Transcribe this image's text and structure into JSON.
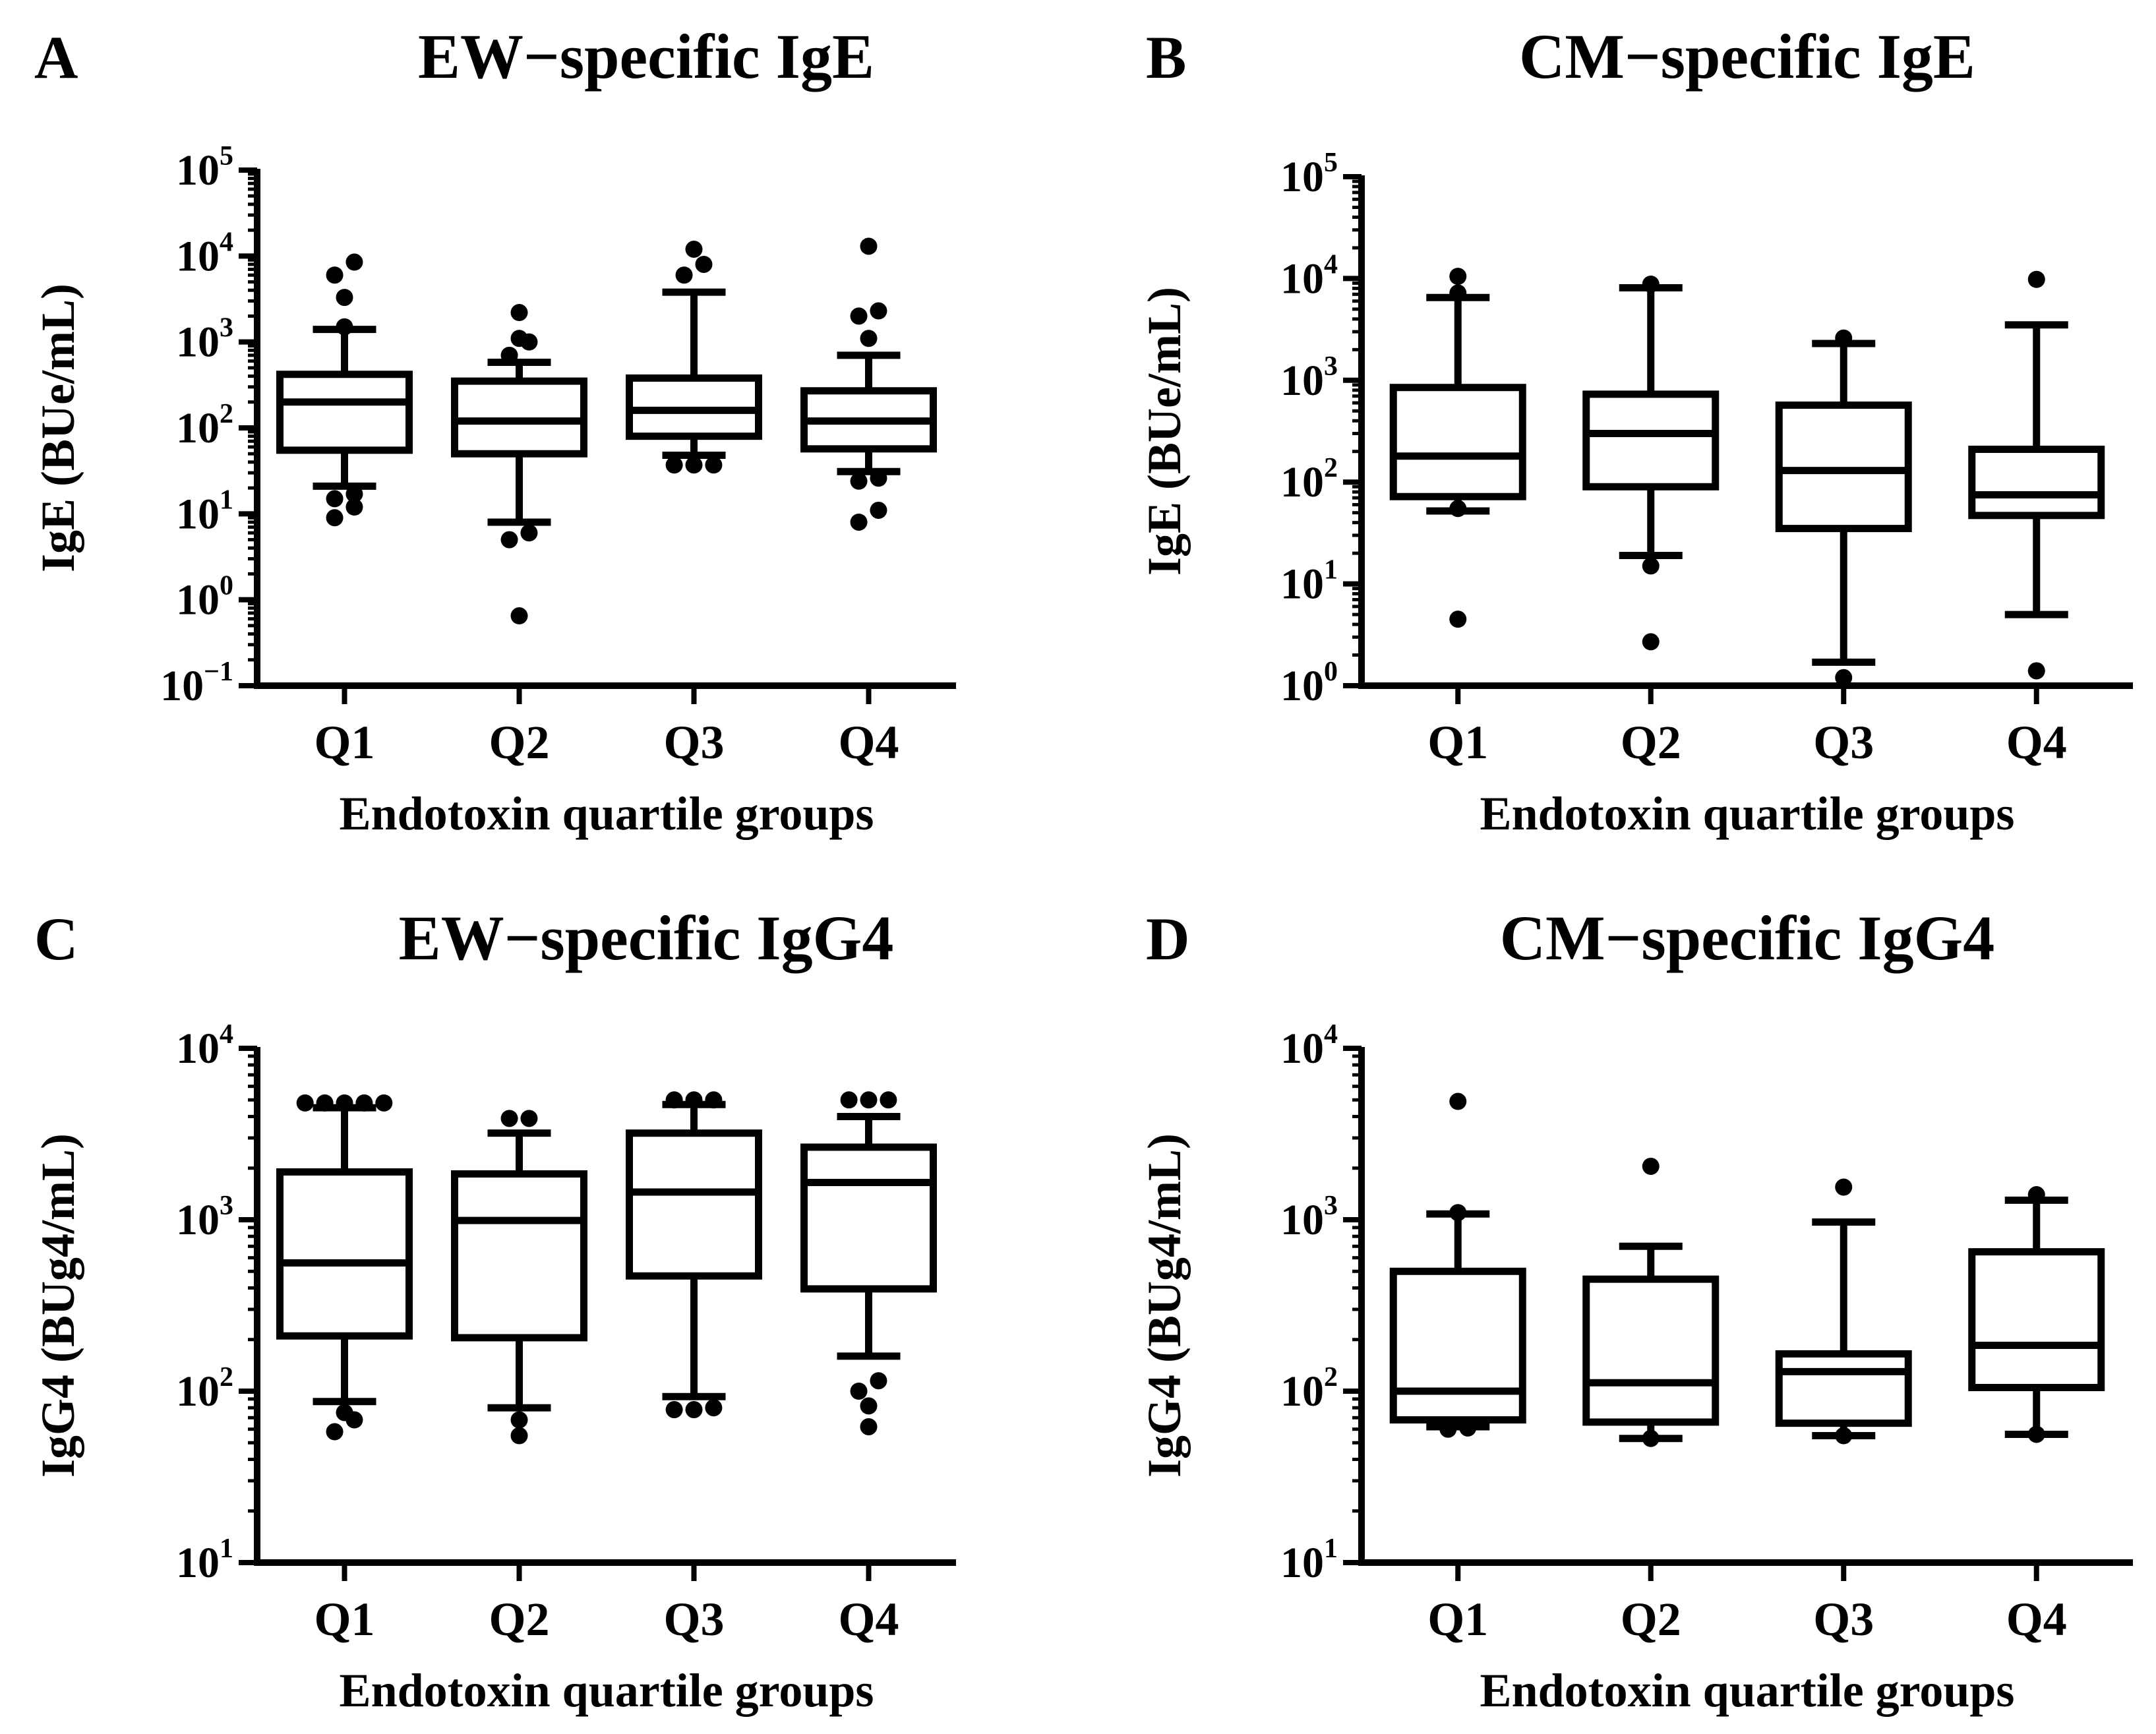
{
  "figure": {
    "panels": [
      "A",
      "B",
      "C",
      "D"
    ]
  },
  "chart_data": [
    {
      "letter": "A",
      "type": "boxplot",
      "title": "EW−specific IgE",
      "ylabel": "IgE (BUe/mL)",
      "xlabel": "Endotoxin quartile groups",
      "yscale": "log",
      "ylim": [
        0.1,
        100000
      ],
      "yticks": [
        {
          "base": "10",
          "exp": "-1",
          "value": 0.1
        },
        {
          "base": "10",
          "exp": "0",
          "value": 1
        },
        {
          "base": "10",
          "exp": "1",
          "value": 10
        },
        {
          "base": "10",
          "exp": "2",
          "value": 100
        },
        {
          "base": "10",
          "exp": "3",
          "value": 1000
        },
        {
          "base": "10",
          "exp": "4",
          "value": 10000
        },
        {
          "base": "10",
          "exp": "5",
          "value": 100000
        }
      ],
      "categories": [
        "Q1",
        "Q2",
        "Q3",
        "Q4"
      ],
      "boxes": [
        {
          "whislo": 21,
          "q1": 55,
          "med": 200,
          "q3": 420,
          "whishi": 1400,
          "outliers": [
            17,
            15,
            12,
            9,
            1500,
            3300,
            6000,
            8500
          ]
        },
        {
          "whislo": 8,
          "q1": 50,
          "med": 120,
          "q3": 350,
          "whishi": 580,
          "outliers": [
            6,
            5,
            0.65,
            700,
            1000,
            1100,
            2200
          ]
        },
        {
          "whislo": 48,
          "q1": 80,
          "med": 160,
          "q3": 380,
          "whishi": 3800,
          "outliers": [
            37,
            37,
            37,
            6000,
            8000,
            12000
          ]
        },
        {
          "whislo": 31,
          "q1": 57,
          "med": 120,
          "q3": 270,
          "whishi": 700,
          "outliers": [
            26,
            24,
            11,
            8,
            1100,
            2000,
            2300,
            13000
          ]
        }
      ]
    },
    {
      "letter": "B",
      "type": "boxplot",
      "title": "CM−specific IgE",
      "ylabel": "IgE (BUe/mL)",
      "xlabel": "Endotoxin quartile groups",
      "yscale": "log",
      "ylim": [
        1,
        100000
      ],
      "yticks": [
        {
          "base": "10",
          "exp": "0",
          "value": 1
        },
        {
          "base": "10",
          "exp": "1",
          "value": 10
        },
        {
          "base": "10",
          "exp": "2",
          "value": 100
        },
        {
          "base": "10",
          "exp": "3",
          "value": 1000
        },
        {
          "base": "10",
          "exp": "4",
          "value": 10000
        },
        {
          "base": "10",
          "exp": "5",
          "value": 100000
        }
      ],
      "categories": [
        "Q1",
        "Q2",
        "Q3",
        "Q4"
      ],
      "boxes": [
        {
          "whislo": 52,
          "q1": 72,
          "med": 180,
          "q3": 850,
          "whishi": 6500,
          "outliers": [
            55,
            4.5,
            7200,
            10500
          ]
        },
        {
          "whislo": 19,
          "q1": 90,
          "med": 300,
          "q3": 730,
          "whishi": 8100,
          "outliers": [
            15,
            2.7,
            8800
          ]
        },
        {
          "whislo": 1.7,
          "q1": 35,
          "med": 130,
          "q3": 570,
          "whishi": 2300,
          "outliers": [
            1.2,
            2600
          ]
        },
        {
          "whislo": 5,
          "q1": 47,
          "med": 75,
          "q3": 210,
          "whishi": 3500,
          "outliers": [
            1.4,
            9800
          ]
        }
      ]
    },
    {
      "letter": "C",
      "type": "boxplot",
      "title": "EW−specific IgG4",
      "ylabel": "IgG4 (BUg4/mL)",
      "xlabel": "Endotoxin quartile groups",
      "yscale": "log",
      "ylim": [
        10,
        10000
      ],
      "yticks": [
        {
          "base": "10",
          "exp": "1",
          "value": 10
        },
        {
          "base": "10",
          "exp": "2",
          "value": 100
        },
        {
          "base": "10",
          "exp": "3",
          "value": 1000
        },
        {
          "base": "10",
          "exp": "4",
          "value": 10000
        }
      ],
      "categories": [
        "Q1",
        "Q2",
        "Q3",
        "Q4"
      ],
      "boxes": [
        {
          "whislo": 87,
          "q1": 210,
          "med": 560,
          "q3": 1900,
          "whishi": 4500,
          "outliers": [
            75,
            68,
            58,
            4800,
            4800,
            4800,
            4800,
            4800
          ]
        },
        {
          "whislo": 80,
          "q1": 205,
          "med": 990,
          "q3": 1850,
          "whishi": 3200,
          "outliers": [
            68,
            55,
            3900,
            3900
          ]
        },
        {
          "whislo": 93,
          "q1": 470,
          "med": 1450,
          "q3": 3200,
          "whishi": 4700,
          "outliers": [
            80,
            78,
            78,
            5000,
            5000,
            5000
          ]
        },
        {
          "whislo": 160,
          "q1": 395,
          "med": 1650,
          "q3": 2650,
          "whishi": 4000,
          "outliers": [
            115,
            100,
            82,
            62,
            5000,
            5000,
            5000
          ]
        }
      ]
    },
    {
      "letter": "D",
      "type": "boxplot",
      "title": "CM−specific IgG4",
      "ylabel": "IgG4 (BUg4/mL)",
      "xlabel": "Endotoxin quartile groups",
      "yscale": "log",
      "ylim": [
        10,
        10000
      ],
      "yticks": [
        {
          "base": "10",
          "exp": "1",
          "value": 10
        },
        {
          "base": "10",
          "exp": "2",
          "value": 100
        },
        {
          "base": "10",
          "exp": "3",
          "value": 1000
        },
        {
          "base": "10",
          "exp": "4",
          "value": 10000
        }
      ],
      "categories": [
        "Q1",
        "Q2",
        "Q3",
        "Q4"
      ],
      "boxes": [
        {
          "whislo": 62,
          "q1": 68,
          "med": 100,
          "q3": 500,
          "whishi": 1080,
          "outliers": [
            60,
            61,
            1100,
            4900
          ]
        },
        {
          "whislo": 53,
          "q1": 66,
          "med": 112,
          "q3": 450,
          "whishi": 700,
          "outliers": [
            53,
            2050
          ]
        },
        {
          "whislo": 55,
          "q1": 65,
          "med": 130,
          "q3": 165,
          "whishi": 970,
          "outliers": [
            55,
            1550
          ]
        },
        {
          "whislo": 56,
          "q1": 105,
          "med": 185,
          "q3": 650,
          "whishi": 1300,
          "outliers": [
            56,
            1400
          ]
        }
      ]
    }
  ]
}
